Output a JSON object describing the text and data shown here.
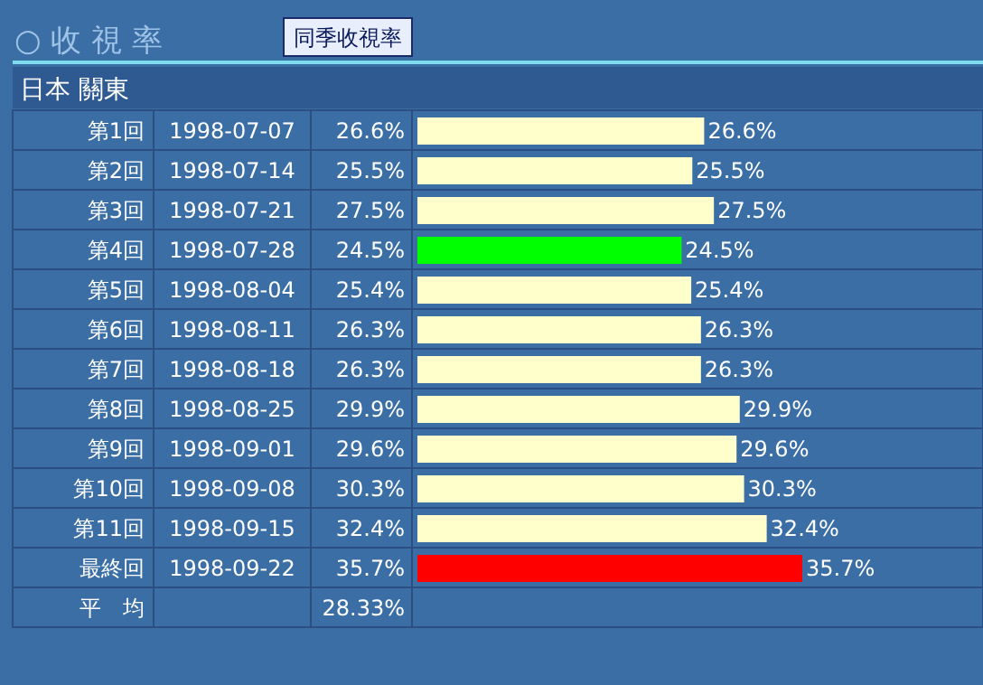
{
  "chart_data": {
    "type": "bar",
    "orientation": "horizontal",
    "title": "○ 收 視 率",
    "subtitle": "日本 關東",
    "categories": [
      "第1回",
      "第2回",
      "第3回",
      "第4回",
      "第5回",
      "第6回",
      "第7回",
      "第8回",
      "第9回",
      "第10回",
      "第11回",
      "最終回"
    ],
    "values": [
      26.6,
      25.5,
      27.5,
      24.5,
      25.4,
      26.3,
      26.3,
      29.9,
      29.6,
      30.3,
      32.4,
      35.7
    ],
    "value_labels": [
      "26.6%",
      "25.5%",
      "27.5%",
      "24.5%",
      "25.4%",
      "26.3%",
      "26.3%",
      "29.9%",
      "29.6%",
      "30.3%",
      "32.4%",
      "35.7%"
    ],
    "colors": [
      "#ffffcc",
      "#ffffcc",
      "#ffffcc",
      "#00ff00",
      "#ffffcc",
      "#ffffcc",
      "#ffffcc",
      "#ffffcc",
      "#ffffcc",
      "#ffffcc",
      "#ffffcc",
      "#ff0000"
    ],
    "annotations": [
      "同季收視率",
      "1998-07-07",
      "1998-07-14",
      "1998-07-21",
      "1998-07-28",
      "1998-08-04",
      "1998-08-11",
      "1998-08-18",
      "1998-08-25",
      "1998-09-01",
      "1998-09-08",
      "1998-09-15",
      "1998-09-22",
      "平　均",
      "28.33%"
    ]
  }
}
